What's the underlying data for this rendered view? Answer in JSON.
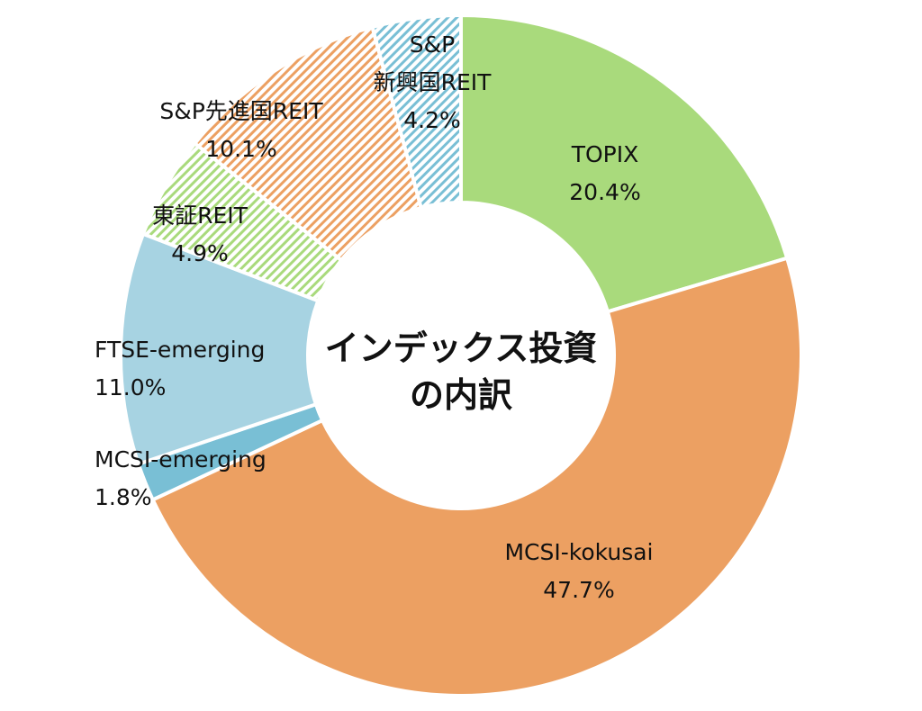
{
  "chart_data": {
    "type": "pie",
    "title": "インデックス投資\nの内訳",
    "title_lines": [
      "インデックス投資",
      "の内訳"
    ],
    "categories": [
      "TOPIX",
      "MCSI-kokusai",
      "MCSI-emerging",
      "FTSE-emerging",
      "東証REIT",
      "S&P先進国REIT",
      "S&P\n新興国REIT"
    ],
    "values": [
      20.4,
      47.7,
      1.8,
      11.0,
      4.9,
      10.1,
      4.2
    ],
    "value_labels": [
      "20.4%",
      "47.7%",
      "1.8%",
      "11.0%",
      "4.9%",
      "10.1%",
      "4.2%"
    ],
    "colors": [
      "#a9da7c",
      "#eca062",
      "#79bfd5",
      "#a7d3e2",
      "#a9da7c",
      "#eca062",
      "#79bfd5"
    ],
    "hatched": [
      false,
      false,
      false,
      false,
      true,
      true,
      true
    ],
    "legend": "none",
    "donut": true
  }
}
